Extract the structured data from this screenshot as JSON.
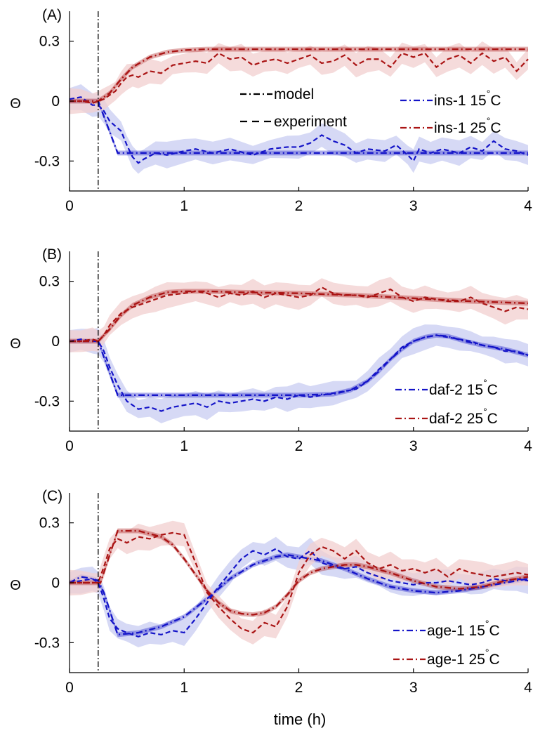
{
  "figure": {
    "xlabel": "time (h)",
    "ylabel": "Θ",
    "style_legend": {
      "model": "model",
      "experiment": "experiment"
    },
    "colors": {
      "cold": "#1414c8",
      "warm": "#aa1414",
      "cold_band": "#c8ccf2",
      "warm_band": "#f1cfcf"
    }
  },
  "chart_data": [
    {
      "type": "line",
      "panel": "(A)",
      "xlim": [
        0,
        4
      ],
      "ylim": [
        -0.45,
        0.45
      ],
      "xticks": [
        "0",
        "1",
        "2",
        "3",
        "4"
      ],
      "yticks": [
        "-0.3",
        "0",
        "0.3"
      ],
      "stimulus_time": 0.25,
      "legend_position": "right",
      "series": [
        {
          "name": "ins-1 15°C",
          "legend_main": "ins-1 15",
          "legend_sup": "°",
          "legend_end": "C",
          "color": "#1414c8",
          "band": "#c8ccf2",
          "model": {
            "x": [
              0,
              0.25,
              0.42,
              4
            ],
            "y": [
              0,
              0,
              -0.26,
              -0.26
            ]
          },
          "experiment": {
            "x": [
              0,
              0.1,
              0.2,
              0.25,
              0.3,
              0.35,
              0.45,
              0.5,
              0.55,
              0.6,
              0.65,
              0.75,
              0.85,
              1.0,
              1.1,
              1.25,
              1.4,
              1.6,
              1.75,
              1.9,
              2.0,
              2.1,
              2.2,
              2.3,
              2.4,
              2.5,
              2.6,
              2.75,
              2.85,
              2.95,
              3.0,
              3.05,
              3.15,
              3.25,
              3.4,
              3.5,
              3.6,
              3.7,
              3.8,
              3.9,
              4.0
            ],
            "y": [
              0.01,
              0.02,
              -0.02,
              -0.02,
              -0.05,
              -0.1,
              -0.15,
              -0.22,
              -0.28,
              -0.31,
              -0.29,
              -0.26,
              -0.27,
              -0.25,
              -0.24,
              -0.26,
              -0.24,
              -0.27,
              -0.24,
              -0.23,
              -0.23,
              -0.21,
              -0.17,
              -0.2,
              -0.22,
              -0.26,
              -0.24,
              -0.25,
              -0.22,
              -0.27,
              -0.3,
              -0.24,
              -0.26,
              -0.24,
              -0.26,
              -0.23,
              -0.25,
              -0.2,
              -0.24,
              -0.25,
              -0.27
            ]
          }
        },
        {
          "name": "ins-1 25°C",
          "legend_main": "ins-1 25",
          "legend_sup": "°",
          "legend_end": "C",
          "color": "#aa1414",
          "band": "#f1cfcf",
          "model": {
            "x": [
              0,
              0.25,
              0.35,
              0.45,
              0.55,
              0.7,
              0.85,
              1.0,
              1.2,
              1.5,
              2.0,
              4.0
            ],
            "y": [
              0,
              0,
              0.04,
              0.11,
              0.17,
              0.22,
              0.245,
              0.255,
              0.26,
              0.26,
              0.26,
              0.26
            ]
          },
          "experiment": {
            "x": [
              0,
              0.1,
              0.2,
              0.25,
              0.3,
              0.35,
              0.4,
              0.45,
              0.5,
              0.55,
              0.6,
              0.7,
              0.8,
              0.9,
              1.0,
              1.1,
              1.2,
              1.3,
              1.4,
              1.5,
              1.6,
              1.7,
              1.8,
              1.9,
              2.0,
              2.1,
              2.2,
              2.3,
              2.4,
              2.5,
              2.6,
              2.7,
              2.8,
              2.9,
              3.0,
              3.1,
              3.2,
              3.3,
              3.4,
              3.5,
              3.6,
              3.7,
              3.8,
              3.9,
              4.0
            ],
            "y": [
              0.0,
              0.0,
              -0.01,
              0.0,
              0.01,
              0.03,
              0.05,
              0.09,
              0.12,
              0.13,
              0.12,
              0.15,
              0.14,
              0.18,
              0.19,
              0.2,
              0.19,
              0.24,
              0.21,
              0.22,
              0.18,
              0.2,
              0.21,
              0.19,
              0.21,
              0.23,
              0.19,
              0.2,
              0.23,
              0.18,
              0.21,
              0.21,
              0.17,
              0.24,
              0.22,
              0.24,
              0.17,
              0.21,
              0.23,
              0.19,
              0.24,
              0.2,
              0.22,
              0.15,
              0.21
            ]
          }
        }
      ]
    },
    {
      "type": "line",
      "panel": "(B)",
      "xlim": [
        0,
        4
      ],
      "ylim": [
        -0.45,
        0.45
      ],
      "xticks": [
        "0",
        "1",
        "2",
        "3",
        "4"
      ],
      "yticks": [
        "-0.3",
        "0",
        "0.3"
      ],
      "stimulus_time": 0.25,
      "legend_position": "bottom-right",
      "series": [
        {
          "name": "daf-2 15°C",
          "legend_main": "daf-2 15",
          "legend_sup": "°",
          "legend_end": "C",
          "color": "#1414c8",
          "band": "#c8ccf2",
          "model": {
            "x": [
              0,
              0.25,
              0.42,
              1.0,
              2.0,
              2.3,
              2.45,
              2.6,
              2.7,
              2.8,
              2.9,
              3.0,
              3.1,
              3.2,
              3.3,
              3.45,
              3.6,
              3.8,
              4.0
            ],
            "y": [
              0,
              0,
              -0.27,
              -0.27,
              -0.27,
              -0.265,
              -0.245,
              -0.2,
              -0.15,
              -0.09,
              -0.04,
              0.0,
              0.02,
              0.03,
              0.025,
              0.0,
              -0.02,
              -0.04,
              -0.07
            ]
          },
          "experiment": {
            "x": [
              0,
              0.1,
              0.2,
              0.25,
              0.3,
              0.35,
              0.42,
              0.5,
              0.6,
              0.7,
              0.8,
              0.9,
              1.0,
              1.1,
              1.2,
              1.3,
              1.4,
              1.5,
              1.6,
              1.7,
              1.8,
              1.9,
              2.0,
              2.1,
              2.2,
              2.3,
              2.4,
              2.5,
              2.6,
              2.7,
              2.8,
              2.9,
              3.0,
              3.1,
              3.2,
              3.3,
              3.4,
              3.5,
              3.6,
              3.7,
              3.8,
              3.9,
              4.0
            ],
            "y": [
              0.0,
              0.01,
              0.0,
              0.0,
              -0.05,
              -0.13,
              -0.22,
              -0.3,
              -0.34,
              -0.33,
              -0.35,
              -0.33,
              -0.32,
              -0.31,
              -0.33,
              -0.3,
              -0.31,
              -0.3,
              -0.29,
              -0.3,
              -0.28,
              -0.29,
              -0.27,
              -0.28,
              -0.27,
              -0.26,
              -0.25,
              -0.24,
              -0.2,
              -0.14,
              -0.09,
              -0.03,
              0.0,
              0.02,
              0.03,
              0.02,
              0.01,
              0.0,
              -0.02,
              -0.03,
              -0.05,
              -0.05,
              -0.07
            ]
          }
        },
        {
          "name": "daf-2 25°C",
          "legend_main": "daf-2 25",
          "legend_sup": "°",
          "legend_end": "C",
          "color": "#aa1414",
          "band": "#f1cfcf",
          "model": {
            "x": [
              0,
              0.25,
              0.35,
              0.45,
              0.55,
              0.7,
              0.85,
              1.0,
              1.2,
              1.5,
              2.0,
              2.5,
              3.0,
              3.5,
              4.0
            ],
            "y": [
              0,
              0,
              0.06,
              0.13,
              0.18,
              0.22,
              0.245,
              0.25,
              0.25,
              0.245,
              0.24,
              0.23,
              0.215,
              0.2,
              0.19
            ]
          },
          "experiment": {
            "x": [
              0,
              0.1,
              0.2,
              0.25,
              0.3,
              0.35,
              0.45,
              0.55,
              0.65,
              0.75,
              0.85,
              1.0,
              1.1,
              1.2,
              1.3,
              1.4,
              1.5,
              1.6,
              1.7,
              1.8,
              1.9,
              2.0,
              2.1,
              2.2,
              2.3,
              2.4,
              2.5,
              2.6,
              2.7,
              2.8,
              2.9,
              3.0,
              3.1,
              3.2,
              3.3,
              3.4,
              3.5,
              3.6,
              3.7,
              3.8,
              3.9,
              4.0
            ],
            "y": [
              0.0,
              0.0,
              0.01,
              0.0,
              0.03,
              0.08,
              0.14,
              0.17,
              0.19,
              0.21,
              0.23,
              0.24,
              0.25,
              0.24,
              0.22,
              0.24,
              0.23,
              0.25,
              0.22,
              0.24,
              0.23,
              0.22,
              0.23,
              0.27,
              0.24,
              0.23,
              0.23,
              0.22,
              0.24,
              0.26,
              0.22,
              0.2,
              0.22,
              0.21,
              0.2,
              0.2,
              0.22,
              0.19,
              0.17,
              0.15,
              0.17,
              0.16
            ]
          }
        }
      ]
    },
    {
      "type": "line",
      "panel": "(C)",
      "xlim": [
        0,
        4
      ],
      "ylim": [
        -0.45,
        0.45
      ],
      "xticks": [
        "0",
        "1",
        "2",
        "3",
        "4"
      ],
      "yticks": [
        "-0.3",
        "0",
        "0.3"
      ],
      "stimulus_time": 0.25,
      "legend_position": "bottom-right",
      "series": [
        {
          "name": "age-1 15°C",
          "legend_main": "age-1 15",
          "legend_sup": "°",
          "legend_end": "C",
          "color": "#1414c8",
          "band": "#c8ccf2",
          "model": {
            "x": [
              0,
              0.1,
              0.2,
              0.25,
              0.3,
              0.42,
              0.6,
              0.8,
              1.0,
              1.2,
              1.4,
              1.6,
              1.8,
              1.9,
              2.0,
              2.2,
              2.4,
              2.6,
              2.8,
              3.0,
              3.2,
              3.4,
              3.6,
              3.8,
              4.0
            ],
            "y": [
              0.0,
              0.03,
              0.02,
              0.01,
              -0.05,
              -0.26,
              -0.25,
              -0.22,
              -0.17,
              -0.08,
              0.02,
              0.09,
              0.13,
              0.14,
              0.13,
              0.11,
              0.07,
              0.02,
              -0.02,
              -0.04,
              -0.05,
              -0.04,
              -0.02,
              0.0,
              0.02
            ]
          },
          "experiment": {
            "x": [
              0,
              0.1,
              0.2,
              0.25,
              0.3,
              0.35,
              0.42,
              0.5,
              0.6,
              0.7,
              0.8,
              0.9,
              1.0,
              1.1,
              1.2,
              1.3,
              1.4,
              1.5,
              1.6,
              1.7,
              1.8,
              1.9,
              2.0,
              2.1,
              2.2,
              2.3,
              2.4,
              2.5,
              2.6,
              2.7,
              2.8,
              2.9,
              3.0,
              3.1,
              3.2,
              3.3,
              3.4,
              3.5,
              3.6,
              3.7,
              3.8,
              3.9,
              4.0
            ],
            "y": [
              0.0,
              0.01,
              0.02,
              0.0,
              -0.08,
              -0.18,
              -0.23,
              -0.25,
              -0.27,
              -0.25,
              -0.26,
              -0.24,
              -0.25,
              -0.18,
              -0.1,
              -0.02,
              0.05,
              0.12,
              0.16,
              0.14,
              0.17,
              0.13,
              0.12,
              0.16,
              0.1,
              0.08,
              0.07,
              0.08,
              0.05,
              0.03,
              0.01,
              0.0,
              -0.01,
              0.0,
              0.0,
              0.01,
              0.0,
              -0.01,
              0.0,
              0.02,
              0.01,
              0.02,
              0.01
            ]
          }
        },
        {
          "name": "age-1 25°C",
          "legend_main": "age-1 25",
          "legend_sup": "°",
          "legend_end": "C",
          "color": "#aa1414",
          "band": "#f1cfcf",
          "model": {
            "x": [
              0,
              0.25,
              0.27,
              0.42,
              0.6,
              0.8,
              0.9,
              1.0,
              1.1,
              1.2,
              1.3,
              1.4,
              1.5,
              1.6,
              1.7,
              1.8,
              1.9,
              2.0,
              2.1,
              2.2,
              2.3,
              2.4,
              2.5,
              2.6,
              2.8,
              3.0,
              3.2,
              3.4,
              3.6,
              3.8,
              4.0
            ],
            "y": [
              0.0,
              0.0,
              0.0,
              0.26,
              0.26,
              0.23,
              0.19,
              0.12,
              0.04,
              -0.04,
              -0.1,
              -0.14,
              -0.155,
              -0.16,
              -0.15,
              -0.12,
              -0.06,
              0.01,
              0.05,
              0.07,
              0.08,
              0.09,
              0.09,
              0.08,
              0.05,
              0.01,
              -0.02,
              -0.03,
              -0.02,
              0.01,
              0.03
            ]
          },
          "experiment": {
            "x": [
              0,
              0.1,
              0.2,
              0.25,
              0.3,
              0.35,
              0.42,
              0.5,
              0.6,
              0.7,
              0.8,
              0.9,
              1.0,
              1.1,
              1.2,
              1.3,
              1.4,
              1.5,
              1.6,
              1.7,
              1.8,
              1.9,
              2.0,
              2.1,
              2.2,
              2.3,
              2.4,
              2.5,
              2.6,
              2.7,
              2.8,
              2.9,
              3.0,
              3.1,
              3.2,
              3.3,
              3.4,
              3.5,
              3.6,
              3.7,
              3.8,
              3.9,
              4.0
            ],
            "y": [
              0.0,
              0.0,
              0.0,
              0.0,
              0.08,
              0.17,
              0.22,
              0.2,
              0.23,
              0.22,
              0.24,
              0.25,
              0.24,
              0.1,
              -0.05,
              -0.12,
              -0.18,
              -0.23,
              -0.25,
              -0.2,
              -0.22,
              -0.12,
              0.05,
              0.14,
              0.18,
              0.16,
              0.12,
              0.16,
              0.1,
              0.07,
              0.09,
              0.06,
              0.07,
              0.05,
              0.07,
              0.03,
              0.07,
              0.05,
              0.04,
              0.03,
              0.04,
              0.05,
              0.04
            ]
          }
        }
      ]
    }
  ]
}
